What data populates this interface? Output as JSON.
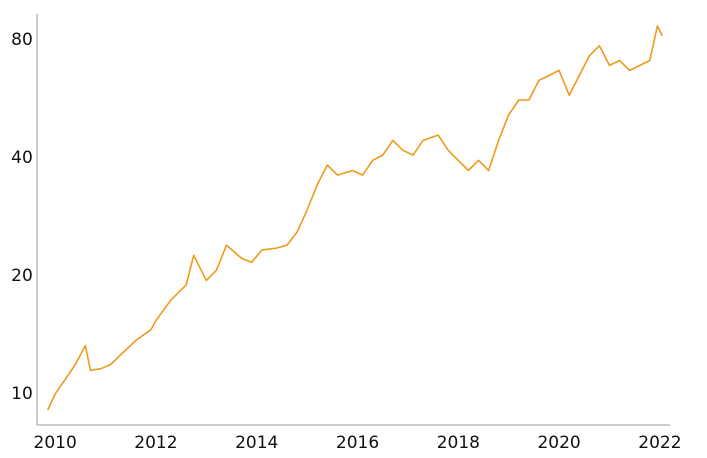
{
  "chart_data": {
    "type": "line",
    "yscale": "log",
    "color": "#ee9a1c",
    "x": [
      2009.85,
      2010.0,
      2010.2,
      2010.4,
      2010.6,
      2010.7,
      2010.9,
      2011.1,
      2011.3,
      2011.6,
      2011.9,
      2012.0,
      2012.3,
      2012.6,
      2012.75,
      2013.0,
      2013.2,
      2013.4,
      2013.7,
      2013.9,
      2014.1,
      2014.4,
      2014.6,
      2014.8,
      2015.0,
      2015.2,
      2015.4,
      2015.6,
      2015.9,
      2016.1,
      2016.3,
      2016.5,
      2016.7,
      2016.9,
      2017.1,
      2017.3,
      2017.6,
      2017.8,
      2018.0,
      2018.2,
      2018.4,
      2018.6,
      2018.8,
      2019.0,
      2019.2,
      2019.4,
      2019.6,
      2019.8,
      2020.0,
      2020.2,
      2020.4,
      2020.6,
      2020.8,
      2021.0,
      2021.2,
      2021.4,
      2021.6,
      2021.8,
      2021.95,
      2022.05
    ],
    "values": [
      9.1,
      10,
      10.9,
      11.9,
      13.3,
      11.5,
      11.6,
      11.9,
      12.6,
      13.7,
      14.6,
      15.4,
      17.4,
      19.0,
      22.6,
      19.5,
      20.7,
      24.0,
      22.2,
      21.7,
      23.3,
      23.6,
      24.0,
      25.9,
      29.5,
      34.2,
      38.4,
      36.2,
      37.2,
      36.2,
      39.5,
      40.7,
      44.4,
      41.9,
      40.7,
      44.4,
      45.8,
      41.9,
      39.5,
      37.2,
      39.5,
      37.2,
      44.4,
      51.6,
      56.3,
      56.3,
      63.2,
      65.0,
      67.0,
      57.9,
      65.0,
      73.0,
      77.4,
      69.0,
      71.0,
      67.0,
      69.0,
      71.0,
      87.0,
      82.0
    ],
    "xlim": [
      2009.64,
      2022.2
    ],
    "xticks": [
      2010,
      2012,
      2014,
      2016,
      2018,
      2020,
      2022
    ],
    "ylim": [
      8.34,
      93.3
    ],
    "yticks": [
      10,
      20,
      40,
      80
    ]
  }
}
